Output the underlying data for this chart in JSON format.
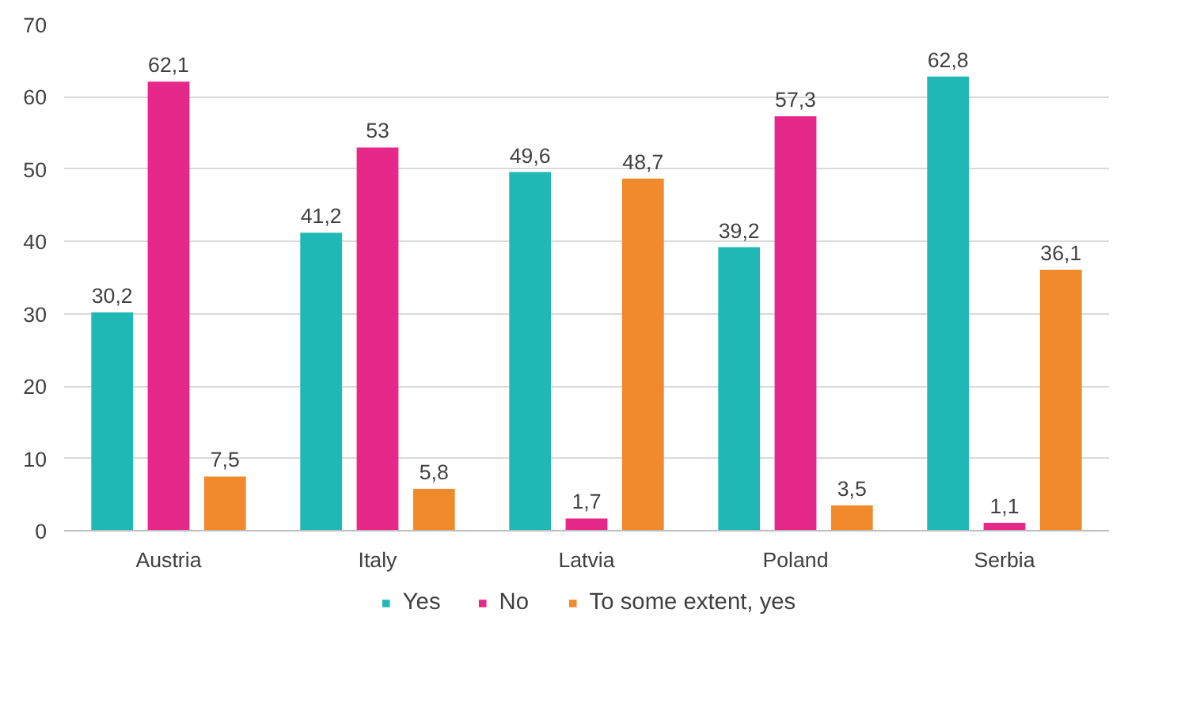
{
  "chart_data": {
    "type": "bar",
    "categories": [
      "Austria",
      "Italy",
      "Latvia",
      "Poland",
      "Serbia"
    ],
    "series": [
      {
        "name": "Yes",
        "color": "#1fb8b4",
        "values": [
          30.2,
          41.2,
          49.6,
          39.2,
          62.8
        ],
        "value_labels": [
          "30,2",
          "41,2",
          "49,6",
          "39,2",
          "62,8"
        ]
      },
      {
        "name": "No",
        "color": "#e6288a",
        "values": [
          62.1,
          53,
          1.7,
          57.3,
          1.1
        ],
        "value_labels": [
          "62,1",
          "53",
          "1,7",
          "57,3",
          "1,1"
        ]
      },
      {
        "name": "To some extent, yes",
        "color": "#f08a2c",
        "values": [
          7.5,
          5.8,
          48.7,
          3.5,
          36.1
        ],
        "value_labels": [
          "7,5",
          "5,8",
          "48,7",
          "3,5",
          "36,1"
        ]
      }
    ],
    "ylim": [
      0,
      70
    ],
    "yticks": [
      0,
      10,
      20,
      30,
      40,
      50,
      60,
      70
    ],
    "grid": "y",
    "legend": "bottom"
  }
}
